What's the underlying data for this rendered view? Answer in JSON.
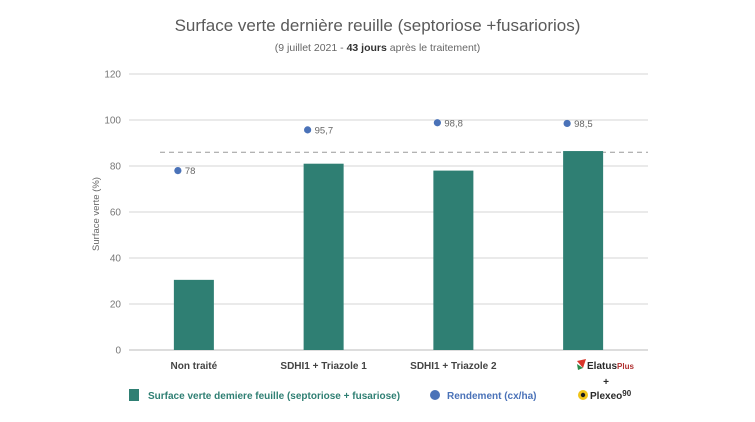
{
  "title": "Surface verte dernière reuille (septoriose +fusariorios)",
  "subtitle": {
    "pre": "(9 juillet 2021 -",
    "bold": "43 jours",
    "post": "après le traitement)"
  },
  "chart_data": {
    "type": "bar",
    "categories": [
      "Non traité",
      "SDHI1 + Triazole 1",
      "SDHI1 + Triazole 2",
      ""
    ],
    "series": [
      {
        "name": "Surface verte demiere feuille (septoriose + fusariose)",
        "values": [
          30.5,
          81,
          78,
          86.5
        ],
        "color": "#2f7f73"
      },
      {
        "name": "Rendement (cx/ha)",
        "values": [
          78,
          95.7,
          98.8,
          98.5
        ],
        "labels": [
          "78",
          "95,7",
          "98,8",
          "98,5"
        ],
        "color": "#4a72b8",
        "marker": "dot"
      }
    ],
    "reference_line": {
      "value": 86,
      "style": "dashed"
    },
    "ylabel": "Surface verte (%)",
    "ylim": [
      0,
      120
    ],
    "yticks": [
      0,
      20,
      40,
      60,
      80,
      100,
      120
    ],
    "grid": true,
    "legend_position": "bottom"
  },
  "product_logo": {
    "line1": "Elatus",
    "line1_suffix": "Plus",
    "plus": "+",
    "line2": "Plexeo",
    "line2_suffix": "90"
  }
}
